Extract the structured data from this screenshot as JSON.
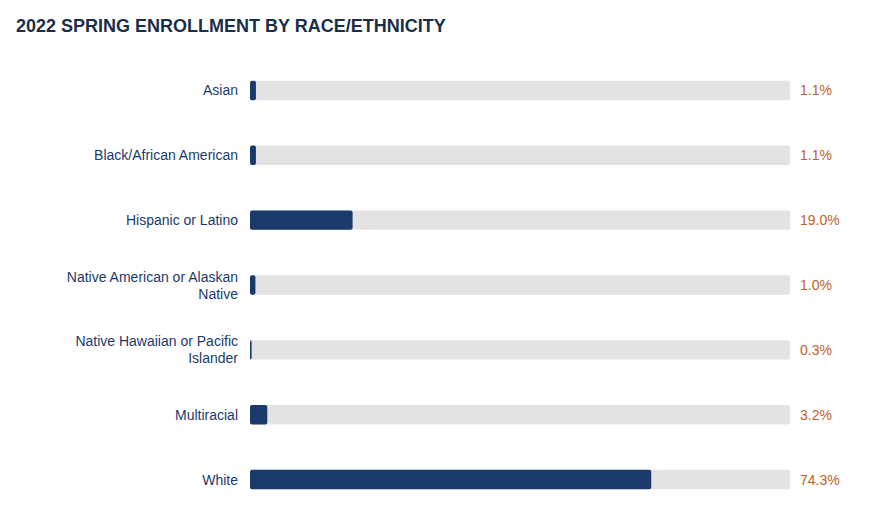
{
  "chart_data": {
    "type": "bar",
    "orientation": "horizontal",
    "title": "2022 SPRING ENROLLMENT BY RACE/ETHNICITY",
    "categories": [
      "Asian",
      "Black/African American",
      "Hispanic or Latino",
      "Native American or Alaskan\nNative",
      "Native Hawaiian or Pacific\nIslander",
      "Multiracial",
      "White"
    ],
    "values": [
      1.1,
      1.1,
      19.0,
      1.0,
      0.3,
      3.2,
      74.3
    ],
    "value_labels": [
      "1.1%",
      "1.1%",
      "19.0%",
      "1.0%",
      "0.3%",
      "3.2%",
      "74.3%"
    ],
    "data_labels": true,
    "color": "#1B3A6B",
    "xlim": [
      0,
      100
    ],
    "tick_labels": "y"
  }
}
